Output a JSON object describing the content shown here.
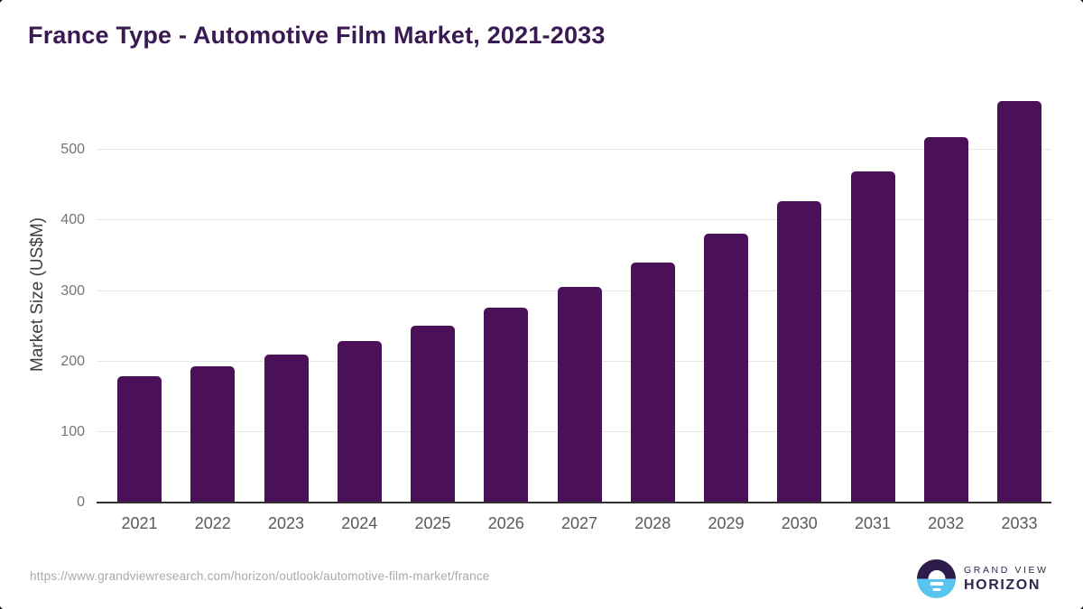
{
  "chart_data": {
    "type": "bar",
    "title": "France Type - Automotive Film Market, 2021-2033",
    "categories": [
      "2021",
      "2022",
      "2023",
      "2024",
      "2025",
      "2026",
      "2027",
      "2028",
      "2029",
      "2030",
      "2031",
      "2032",
      "2033"
    ],
    "values": [
      179,
      193,
      210,
      229,
      251,
      277,
      306,
      341,
      381,
      428,
      470,
      518,
      570
    ],
    "xlabel": "",
    "ylabel": "Market Size (US$M)",
    "yticks": [
      0,
      100,
      200,
      300,
      400,
      500
    ],
    "ylim": [
      0,
      590
    ],
    "grid": true,
    "legend": false,
    "bar_color": "#4a1158",
    "title_color": "#3a1a52",
    "gridline_color": "#e7e7e7",
    "axis_line_color": "#2f2f2f",
    "tick_label_color": "#757575",
    "category_label_color": "#58595b"
  },
  "footer": {
    "source_url": "https://www.grandviewresearch.com/horizon/outlook/automotive-film-market/france",
    "logo": {
      "line1": "GRAND VIEW",
      "line2": "HORIZON",
      "purple": "#32254e",
      "blue": "#5ac4f0"
    }
  }
}
